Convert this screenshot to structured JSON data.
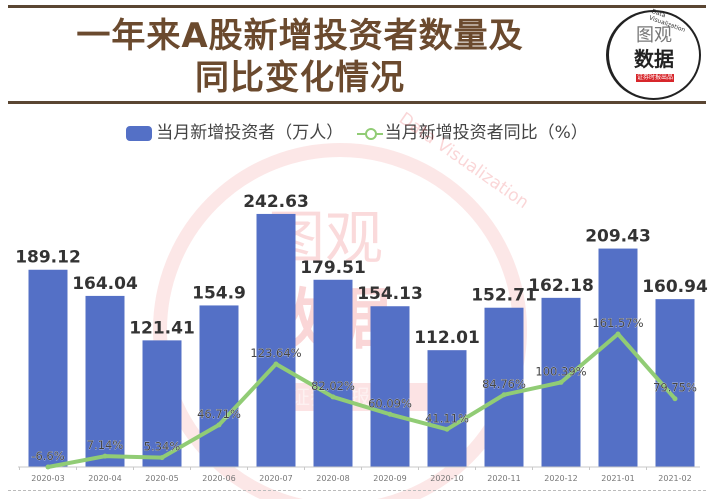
{
  "header": {
    "title_line1": "一年来A股新增投资者数量及",
    "title_line2": "同比变化情况",
    "logo": {
      "line1": "图观",
      "line2": "数据",
      "badge": "证券时报出品",
      "arc_text": "Data Visualization"
    }
  },
  "legend": {
    "bar_label": "当月新增投资者（万人）",
    "line_label": "当月新增投资者同比（%）"
  },
  "watermark": {
    "line1": "图观",
    "line2": "数据",
    "badge": "证券时报出品",
    "arc_text": "Data Visualization"
  },
  "colors": {
    "bar": "#5470c6",
    "line": "#91cc75",
    "title": "#6b4a2e",
    "watermark": "#e8383d"
  },
  "chart_data": {
    "type": "bar",
    "title": "一年来A股新增投资者数量及同比变化情况",
    "categories": [
      "2020-03",
      "2020-04",
      "2020-05",
      "2020-06",
      "2020-07",
      "2020-08",
      "2020-09",
      "2020-10",
      "2020-11",
      "2020-12",
      "2021-01",
      "2021-02"
    ],
    "series": [
      {
        "name": "当月新增投资者（万人）",
        "type": "bar",
        "values": [
          189.12,
          164.04,
          121.41,
          154.9,
          242.63,
          179.51,
          154.13,
          112.01,
          152.71,
          162.18,
          209.43,
          160.94
        ],
        "labels": [
          "189.12",
          "164.04",
          "121.41",
          "154.9",
          "242.63",
          "179.51",
          "154.13",
          "112.01",
          "152.71",
          "162.18",
          "209.43",
          "160.94"
        ]
      },
      {
        "name": "当月新增投资者同比（%）",
        "type": "line",
        "values": [
          -6.6,
          7.14,
          5.34,
          46.71,
          123.64,
          82.02,
          60.09,
          41.11,
          84.76,
          100.39,
          161.57,
          79.75
        ],
        "labels": [
          "-6.6%",
          "7.14%",
          "5.34%",
          "46.71%",
          "123.64%",
          "82.02%",
          "60.09%",
          "41.11%",
          "84.76%",
          "100.39%",
          "161.57%",
          "79.75%"
        ]
      }
    ],
    "xlabel": "",
    "ylabel": "",
    "grid": false,
    "legend_position": "top"
  }
}
